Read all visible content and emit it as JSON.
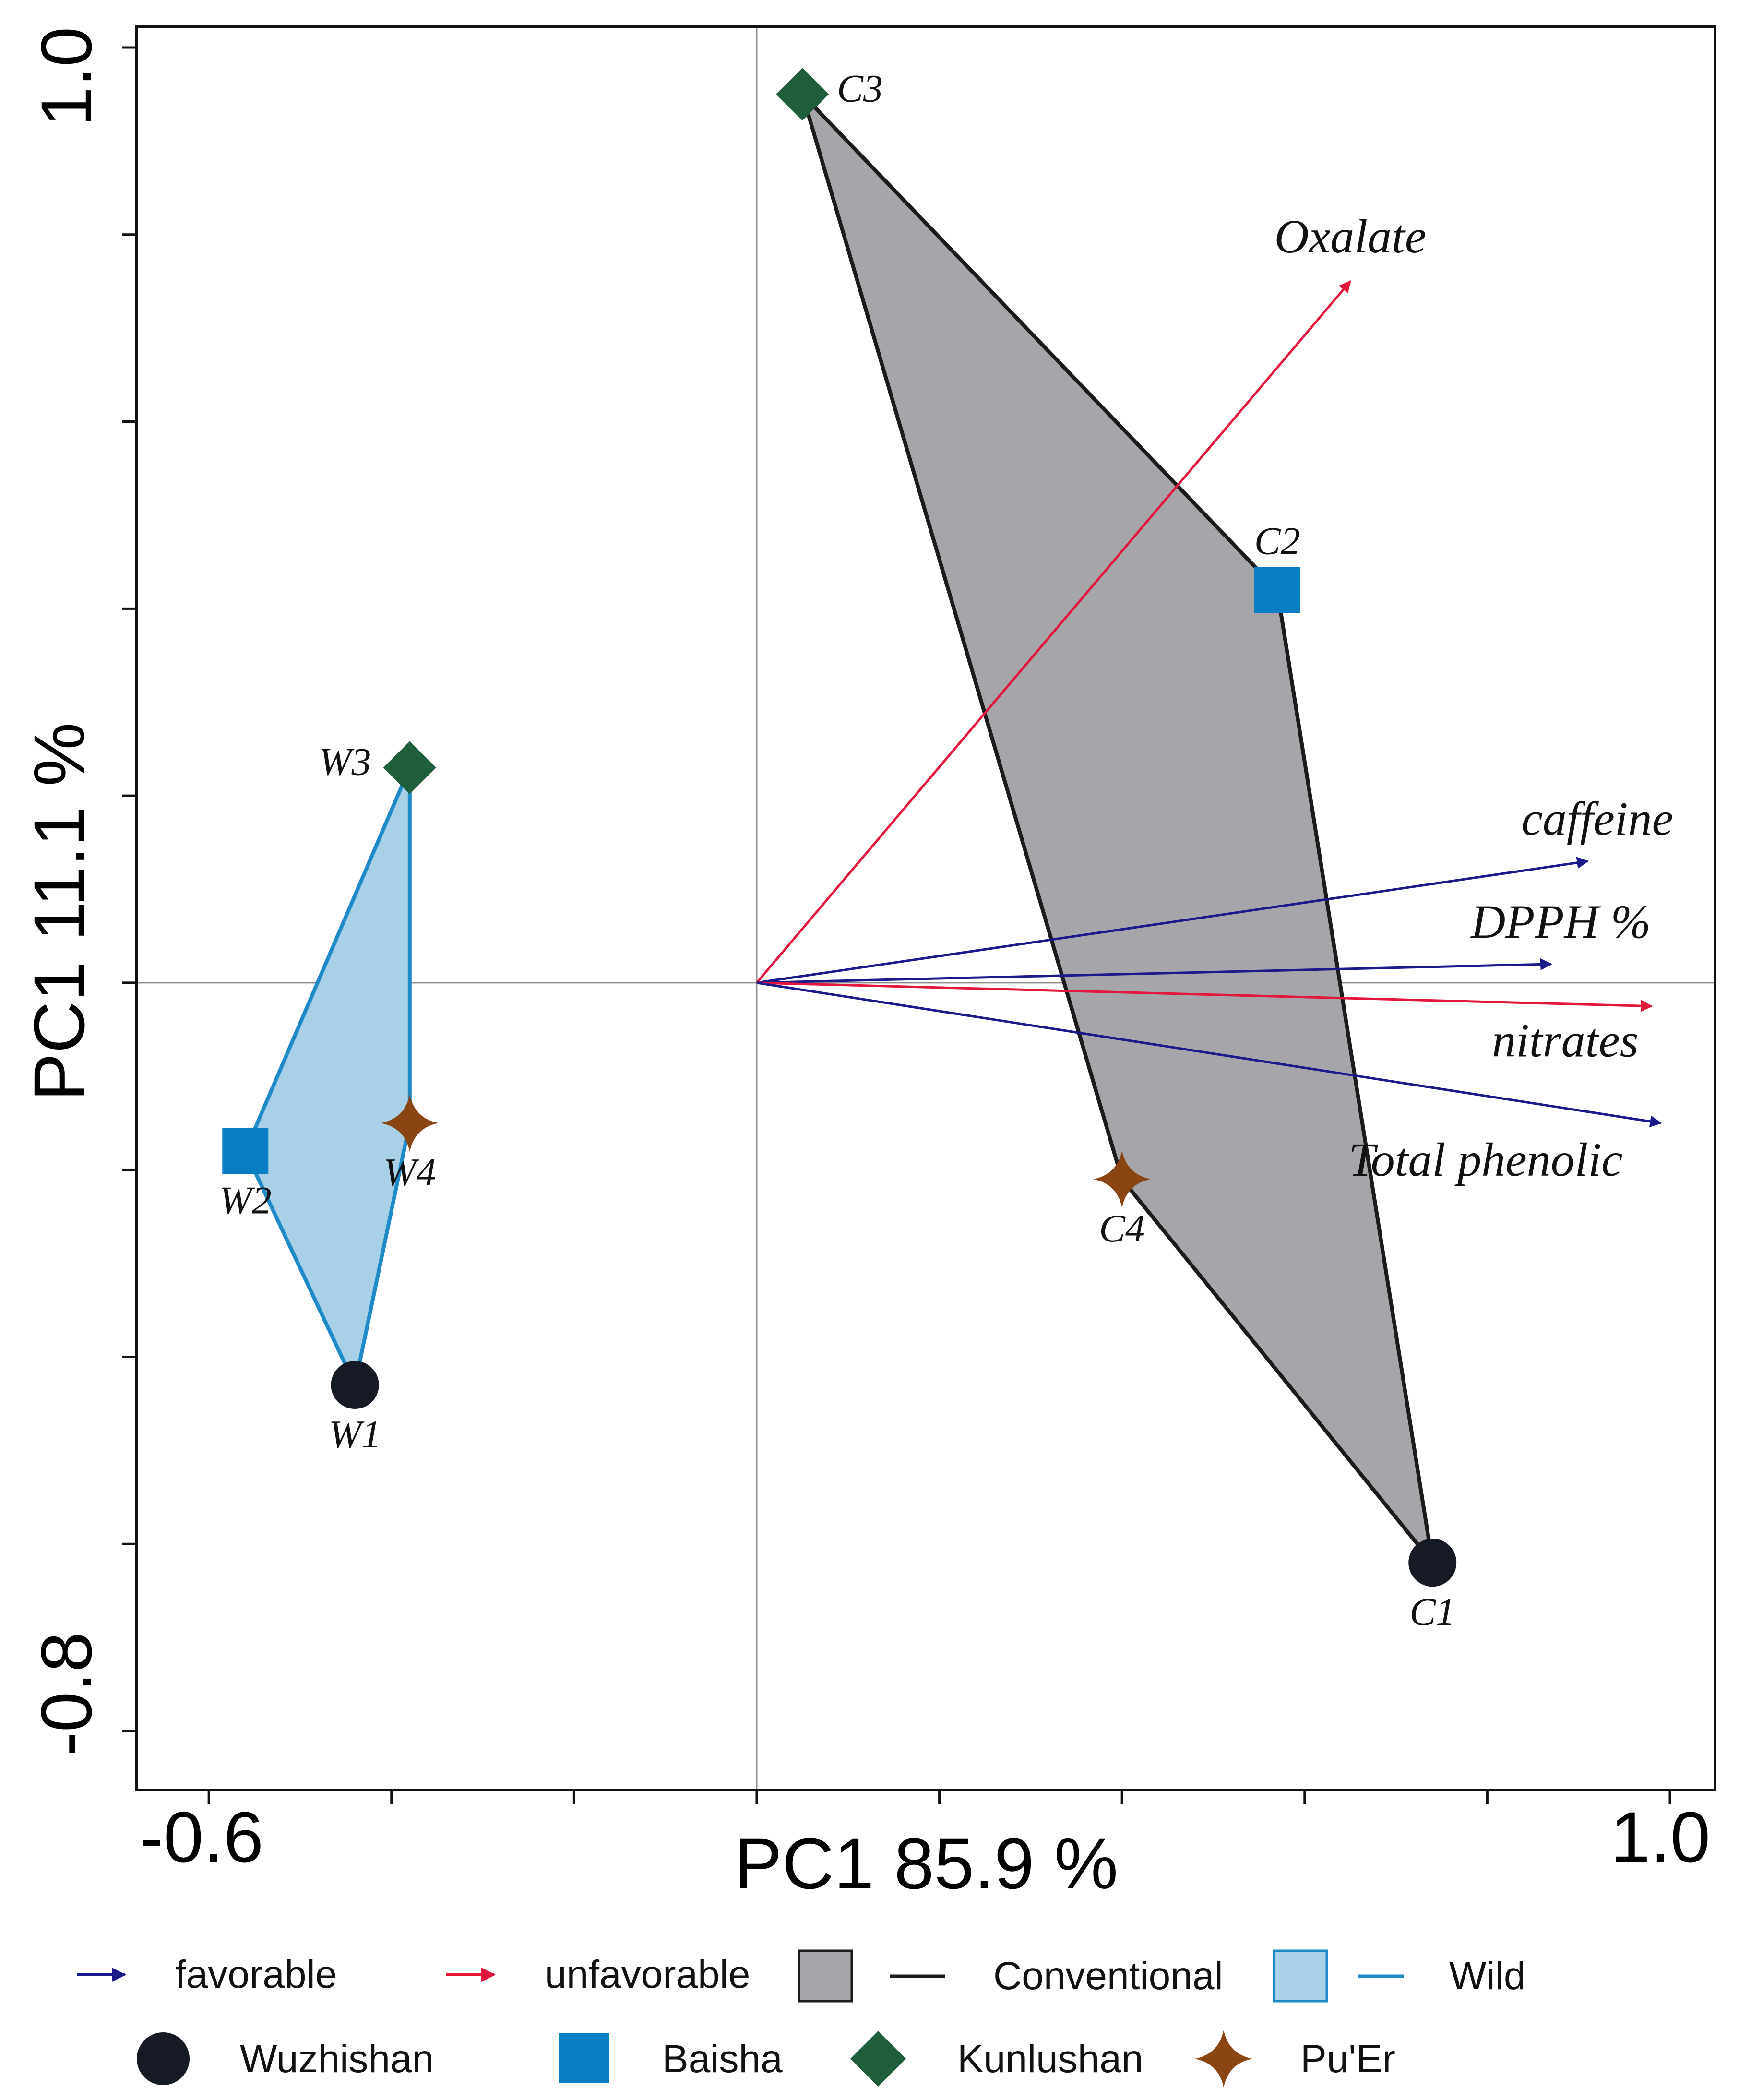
{
  "chart_data": {
    "type": "scatter",
    "title": "",
    "xlabel": "PC1 85.9 %",
    "ylabel": "PC1 11.1 %",
    "xlim": [
      -0.65,
      1.0
    ],
    "ylim": [
      -0.84,
      1.02
    ],
    "x_tick_labels": [
      {
        "value": -0.6,
        "label": "-0.6"
      },
      {
        "value": 1.0,
        "label": "1.0"
      }
    ],
    "y_tick_labels": [
      {
        "value": 1.0,
        "label": "1.0"
      },
      {
        "value": -0.8,
        "label": "-0.8"
      }
    ],
    "x_minor_ticks": [
      -0.6,
      -0.4,
      -0.2,
      0.0,
      0.2,
      0.4,
      0.6,
      0.8,
      1.0
    ],
    "y_minor_ticks": [
      1.0,
      0.8,
      0.6,
      0.4,
      0.2,
      0.0,
      -0.2,
      -0.4,
      -0.6,
      -0.8
    ],
    "reference_lines": {
      "x": 0.0,
      "y": 0.0
    },
    "groups": [
      {
        "name": "Conventional",
        "fill": "#a6a6aa",
        "stroke": "#1b1b1b",
        "hull": [
          "C3",
          "C2",
          "C1",
          "C4"
        ]
      },
      {
        "name": "Wild",
        "fill": "#a8d1e7",
        "stroke": "#1f8ac8",
        "hull": [
          "W3",
          "W4",
          "W1",
          "W2"
        ]
      }
    ],
    "points": [
      {
        "label": "C3",
        "x": 0.05,
        "y": 0.95,
        "origin": "Kunlushan",
        "group": "Conventional"
      },
      {
        "label": "C2",
        "x": 0.57,
        "y": 0.42,
        "origin": "Baisha",
        "group": "Conventional"
      },
      {
        "label": "C4",
        "x": 0.4,
        "y": -0.21,
        "origin": "Pu'Er",
        "group": "Conventional"
      },
      {
        "label": "C1",
        "x": 0.74,
        "y": -0.62,
        "origin": "Wuzhishan",
        "group": "Conventional"
      },
      {
        "label": "W3",
        "x": -0.38,
        "y": 0.23,
        "origin": "Kunlushan",
        "group": "Wild"
      },
      {
        "label": "W2",
        "x": -0.56,
        "y": -0.18,
        "origin": "Baisha",
        "group": "Wild"
      },
      {
        "label": "W4",
        "x": -0.38,
        "y": -0.15,
        "origin": "Pu'Er",
        "group": "Wild"
      },
      {
        "label": "W1",
        "x": -0.44,
        "y": -0.43,
        "origin": "Wuzhishan",
        "group": "Wild"
      }
    ],
    "vectors": [
      {
        "name": "Oxalate",
        "x": 0.65,
        "y": 0.75,
        "type": "unfavorable"
      },
      {
        "name": "caffeine",
        "x": 0.91,
        "y": 0.13,
        "type": "favorable"
      },
      {
        "name": "DPPH %",
        "x": 0.87,
        "y": 0.02,
        "type": "favorable"
      },
      {
        "name": "nitrates",
        "x": 0.98,
        "y": -0.025,
        "type": "unfavorable"
      },
      {
        "name": "Total phenolic",
        "x": 0.99,
        "y": -0.15,
        "type": "favorable"
      }
    ],
    "legend": {
      "position": "bottom",
      "row1": [
        {
          "key": "favorable",
          "label": "favorable",
          "symbol": "arrow",
          "color": "#1a1a8c"
        },
        {
          "key": "unfavorable",
          "label": "unfavorable",
          "symbol": "arrow",
          "color": "#e3163c"
        },
        {
          "key": "Conventional",
          "label": "Conventional",
          "symbol": "box-line",
          "fill": "#a6a6aa",
          "stroke": "#1b1b1b"
        },
        {
          "key": "Wild",
          "label": "Wild",
          "symbol": "box-line",
          "fill": "#a8d1e7",
          "stroke": "#1f8ac8"
        }
      ],
      "row2": [
        {
          "key": "Wuzhishan",
          "label": "Wuzhishan",
          "symbol": "circle",
          "color": "#161a24"
        },
        {
          "key": "Baisha",
          "label": "Baisha",
          "symbol": "square",
          "color": "#0a7ec4"
        },
        {
          "key": "Kunlushan",
          "label": "Kunlushan",
          "symbol": "diamond",
          "color": "#1f5e3a"
        },
        {
          "key": "Pu'Er",
          "label": "Pu'Er",
          "symbol": "star4",
          "color": "#8b4513"
        }
      ]
    },
    "colors": {
      "favorable": "#1a1a8c",
      "unfavorable": "#e3163c",
      "Wuzhishan": "#161a24",
      "Baisha": "#0a7ec4",
      "Kunlushan": "#1f5e3a",
      "Pu'Er": "#8b4513"
    }
  }
}
